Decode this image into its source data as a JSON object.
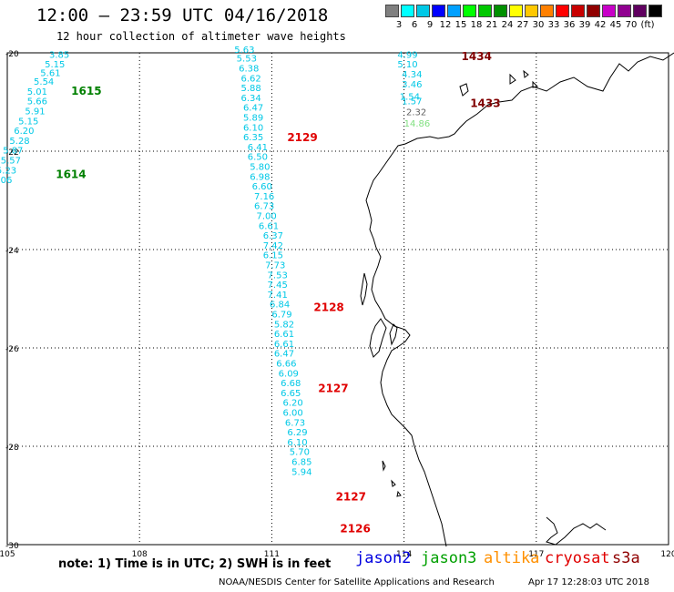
{
  "header": {
    "title": "12:00 – 23:59 UTC 04/16/2018",
    "subtitle": "12 hour collection of altimeter wave heights"
  },
  "scale": {
    "colors": [
      "#808080",
      "#00ffff",
      "#00c8e6",
      "#0000ff",
      "#00a0ff",
      "#00ff00",
      "#00c800",
      "#009000",
      "#ffff00",
      "#ffc800",
      "#ff8000",
      "#ff0000",
      "#c80000",
      "#900000",
      "#c800c8",
      "#900090",
      "#600060",
      "#000000"
    ],
    "labels": [
      "3",
      "6",
      "9",
      "12",
      "15",
      "18",
      "21",
      "24",
      "27",
      "30",
      "33",
      "36",
      "39",
      "42",
      "45",
      "70"
    ],
    "unit": "(ft)"
  },
  "map": {
    "lon_ticks": [
      "105",
      "108",
      "111",
      "114",
      "117",
      "120"
    ],
    "lat_ticks": [
      "-20",
      "-22",
      "-24",
      "-26",
      "-28",
      "-30"
    ],
    "lon_range": [
      105,
      120
    ],
    "lat_range": [
      -30,
      -20
    ]
  },
  "track_labels": [
    {
      "text": "1615",
      "color": "#008000",
      "lon": 106.45,
      "lat": -20.85
    },
    {
      "text": "1614",
      "color": "#008000",
      "lon": 106.1,
      "lat": -22.55
    },
    {
      "text": "2129",
      "color": "#e00000",
      "lon": 111.35,
      "lat": -21.8
    },
    {
      "text": "2128",
      "color": "#e00000",
      "lon": 111.95,
      "lat": -25.25
    },
    {
      "text": "2127",
      "color": "#e00000",
      "lon": 112.05,
      "lat": -26.9
    },
    {
      "text": "2127",
      "color": "#e00000",
      "lon": 112.45,
      "lat": -29.1
    },
    {
      "text": "2126",
      "color": "#e00000",
      "lon": 112.55,
      "lat": -29.75
    },
    {
      "text": "1434",
      "color": "#800000",
      "lon": 115.3,
      "lat": -20.15
    },
    {
      "text": "1433",
      "color": "#800000",
      "lon": 115.5,
      "lat": -21.1
    }
  ],
  "points": [
    {
      "v": "3.85",
      "lon": 105.95,
      "lat": -20.1
    },
    {
      "v": "5.15",
      "lon": 105.85,
      "lat": -20.3
    },
    {
      "v": "5.61",
      "lon": 105.75,
      "lat": -20.47
    },
    {
      "v": "5.54",
      "lon": 105.6,
      "lat": -20.65
    },
    {
      "v": "5.01",
      "lon": 105.45,
      "lat": -20.85
    },
    {
      "v": "5.66",
      "lon": 105.45,
      "lat": -21.05
    },
    {
      "v": "5.91",
      "lon": 105.4,
      "lat": -21.25
    },
    {
      "v": "5.15",
      "lon": 105.25,
      "lat": -21.45
    },
    {
      "v": "6.20",
      "lon": 105.15,
      "lat": -21.65
    },
    {
      "v": "5.28",
      "lon": 105.05,
      "lat": -21.85
    },
    {
      "v": "5.87",
      "lon": 104.9,
      "lat": -22.05
    },
    {
      "v": "5.57",
      "lon": 104.85,
      "lat": -22.25
    },
    {
      "v": "5.23",
      "lon": 104.75,
      "lat": -22.45
    },
    {
      "v": "5.06",
      "lon": 104.65,
      "lat": -22.65
    },
    {
      "v": "5.63",
      "lon": 110.15,
      "lat": -20.0
    },
    {
      "v": "5.53",
      "lon": 110.2,
      "lat": -20.18
    },
    {
      "v": "6.38",
      "lon": 110.25,
      "lat": -20.38
    },
    {
      "v": "6.62",
      "lon": 110.3,
      "lat": -20.58
    },
    {
      "v": "5.88",
      "lon": 110.3,
      "lat": -20.78
    },
    {
      "v": "6.34",
      "lon": 110.3,
      "lat": -20.98
    },
    {
      "v": "6.47",
      "lon": 110.35,
      "lat": -21.18
    },
    {
      "v": "5.89",
      "lon": 110.35,
      "lat": -21.38
    },
    {
      "v": "6.10",
      "lon": 110.35,
      "lat": -21.58
    },
    {
      "v": "6.35",
      "lon": 110.35,
      "lat": -21.78
    },
    {
      "v": "6.41",
      "lon": 110.45,
      "lat": -21.98
    },
    {
      "v": "6.50",
      "lon": 110.45,
      "lat": -22.18
    },
    {
      "v": "5.80",
      "lon": 110.5,
      "lat": -22.38
    },
    {
      "v": "6.98",
      "lon": 110.5,
      "lat": -22.58
    },
    {
      "v": "6.60",
      "lon": 110.55,
      "lat": -22.78
    },
    {
      "v": "7.16",
      "lon": 110.6,
      "lat": -22.98
    },
    {
      "v": "6.73",
      "lon": 110.6,
      "lat": -23.18
    },
    {
      "v": "7.00",
      "lon": 110.65,
      "lat": -23.38
    },
    {
      "v": "6.61",
      "lon": 110.7,
      "lat": -23.58
    },
    {
      "v": "6.37",
      "lon": 110.8,
      "lat": -23.78
    },
    {
      "v": "7.42",
      "lon": 110.8,
      "lat": -23.98
    },
    {
      "v": "6.15",
      "lon": 110.8,
      "lat": -24.18
    },
    {
      "v": "7.73",
      "lon": 110.85,
      "lat": -24.38
    },
    {
      "v": "7.53",
      "lon": 110.9,
      "lat": -24.58
    },
    {
      "v": "7.45",
      "lon": 110.9,
      "lat": -24.78
    },
    {
      "v": "7.41",
      "lon": 110.9,
      "lat": -24.98
    },
    {
      "v": "6.84",
      "lon": 110.95,
      "lat": -25.18
    },
    {
      "v": "6.79",
      "lon": 111.0,
      "lat": -25.38
    },
    {
      "v": "5.82",
      "lon": 111.05,
      "lat": -25.58
    },
    {
      "v": "6.61",
      "lon": 111.05,
      "lat": -25.78
    },
    {
      "v": "6.61",
      "lon": 111.05,
      "lat": -25.98
    },
    {
      "v": "6.47",
      "lon": 111.05,
      "lat": -26.18
    },
    {
      "v": "6.66",
      "lon": 111.1,
      "lat": -26.38
    },
    {
      "v": "6.09",
      "lon": 111.15,
      "lat": -26.58
    },
    {
      "v": "6.68",
      "lon": 111.2,
      "lat": -26.78
    },
    {
      "v": "6.65",
      "lon": 111.2,
      "lat": -26.98
    },
    {
      "v": "6.20",
      "lon": 111.25,
      "lat": -27.18
    },
    {
      "v": "6.00",
      "lon": 111.25,
      "lat": -27.38
    },
    {
      "v": "6.73",
      "lon": 111.3,
      "lat": -27.58
    },
    {
      "v": "6.29",
      "lon": 111.35,
      "lat": -27.78
    },
    {
      "v": "6.10",
      "lon": 111.35,
      "lat": -27.98
    },
    {
      "v": "5.70",
      "lon": 111.4,
      "lat": -28.18
    },
    {
      "v": "6.85",
      "lon": 111.45,
      "lat": -28.38
    },
    {
      "v": "5.94",
      "lon": 111.45,
      "lat": -28.58
    },
    {
      "v": "4.99",
      "lon": 113.85,
      "lat": -20.1
    },
    {
      "v": "5.10",
      "lon": 113.85,
      "lat": -20.3
    },
    {
      "v": "4.34",
      "lon": 113.95,
      "lat": -20.5
    },
    {
      "v": "3.46",
      "lon": 113.95,
      "lat": -20.7
    },
    {
      "v": "1.54",
      "lon": 113.9,
      "lat": -20.95
    },
    {
      "v": "1.57",
      "lon": 113.95,
      "lat": -21.05
    },
    {
      "v": "2.32",
      "lon": 114.05,
      "lat": -21.27
    },
    {
      "v": "14.86",
      "lon": 114.0,
      "lat": -21.5
    }
  ],
  "footer": {
    "note": "note:  1) Time is in UTC;  2) SWH is in feet",
    "satellites": [
      {
        "name": "jason2",
        "color": "#0000e0"
      },
      {
        "name": "jason3",
        "color": "#00a000"
      },
      {
        "name": "altika",
        "color": "#ff9000"
      },
      {
        "name": "cryosat",
        "color": "#e00000"
      },
      {
        "name": "s3a",
        "color": "#900000"
      }
    ],
    "credit": "NOAA/NESDIS Center for Satellite Applications and Research",
    "timestamp": "Apr 17 12:28:03 UTC 2018"
  }
}
